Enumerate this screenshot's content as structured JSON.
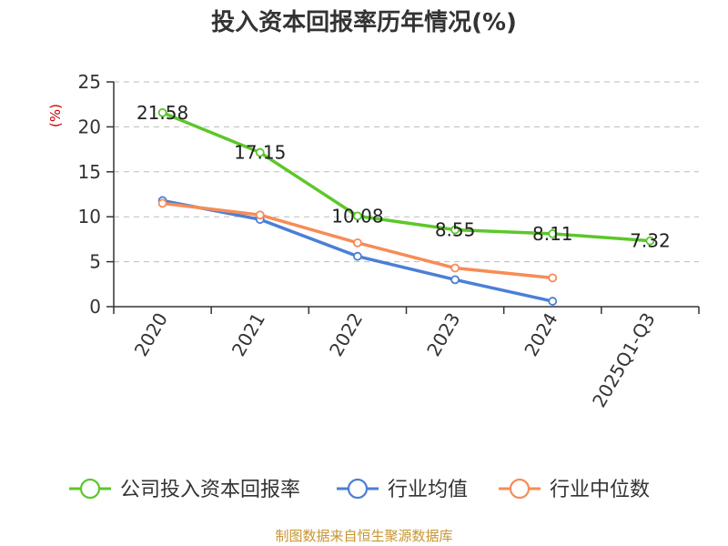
{
  "title": "投入资本回报率历年情况(%)",
  "unit_label": "(%)",
  "source": "制图数据来自恒生聚源数据库",
  "colors": {
    "company": "#5cc72a",
    "industry_avg": "#4b7fd6",
    "industry_median": "#f78c56",
    "axis": "#333333",
    "grid": "#bbbbbb",
    "unit": "#cc0000",
    "source": "#c8952f"
  },
  "chart_data": {
    "type": "line",
    "title": "投入资本回报率历年情况(%)",
    "ylabel": "(%)",
    "ylim": [
      0,
      25
    ],
    "yticks": [
      0,
      5,
      10,
      15,
      20,
      25
    ],
    "grid": true,
    "legend_position": "bottom",
    "categories": [
      "2020",
      "2021",
      "2022",
      "2023",
      "2024",
      "2025Q1-Q3"
    ],
    "series": [
      {
        "name": "公司投入资本回报率",
        "color": "#5cc72a",
        "values": [
          21.58,
          17.15,
          10.08,
          8.55,
          8.11,
          7.32
        ],
        "labels": [
          "21.58",
          "17.15",
          "10.08",
          "8.55",
          "8.11",
          "7.32"
        ]
      },
      {
        "name": "行业均值",
        "color": "#4b7fd6",
        "values": [
          11.8,
          9.7,
          5.6,
          3.0,
          0.6,
          null
        ]
      },
      {
        "name": "行业中位数",
        "color": "#f78c56",
        "values": [
          11.5,
          10.2,
          7.1,
          4.3,
          3.2,
          null
        ]
      }
    ]
  }
}
